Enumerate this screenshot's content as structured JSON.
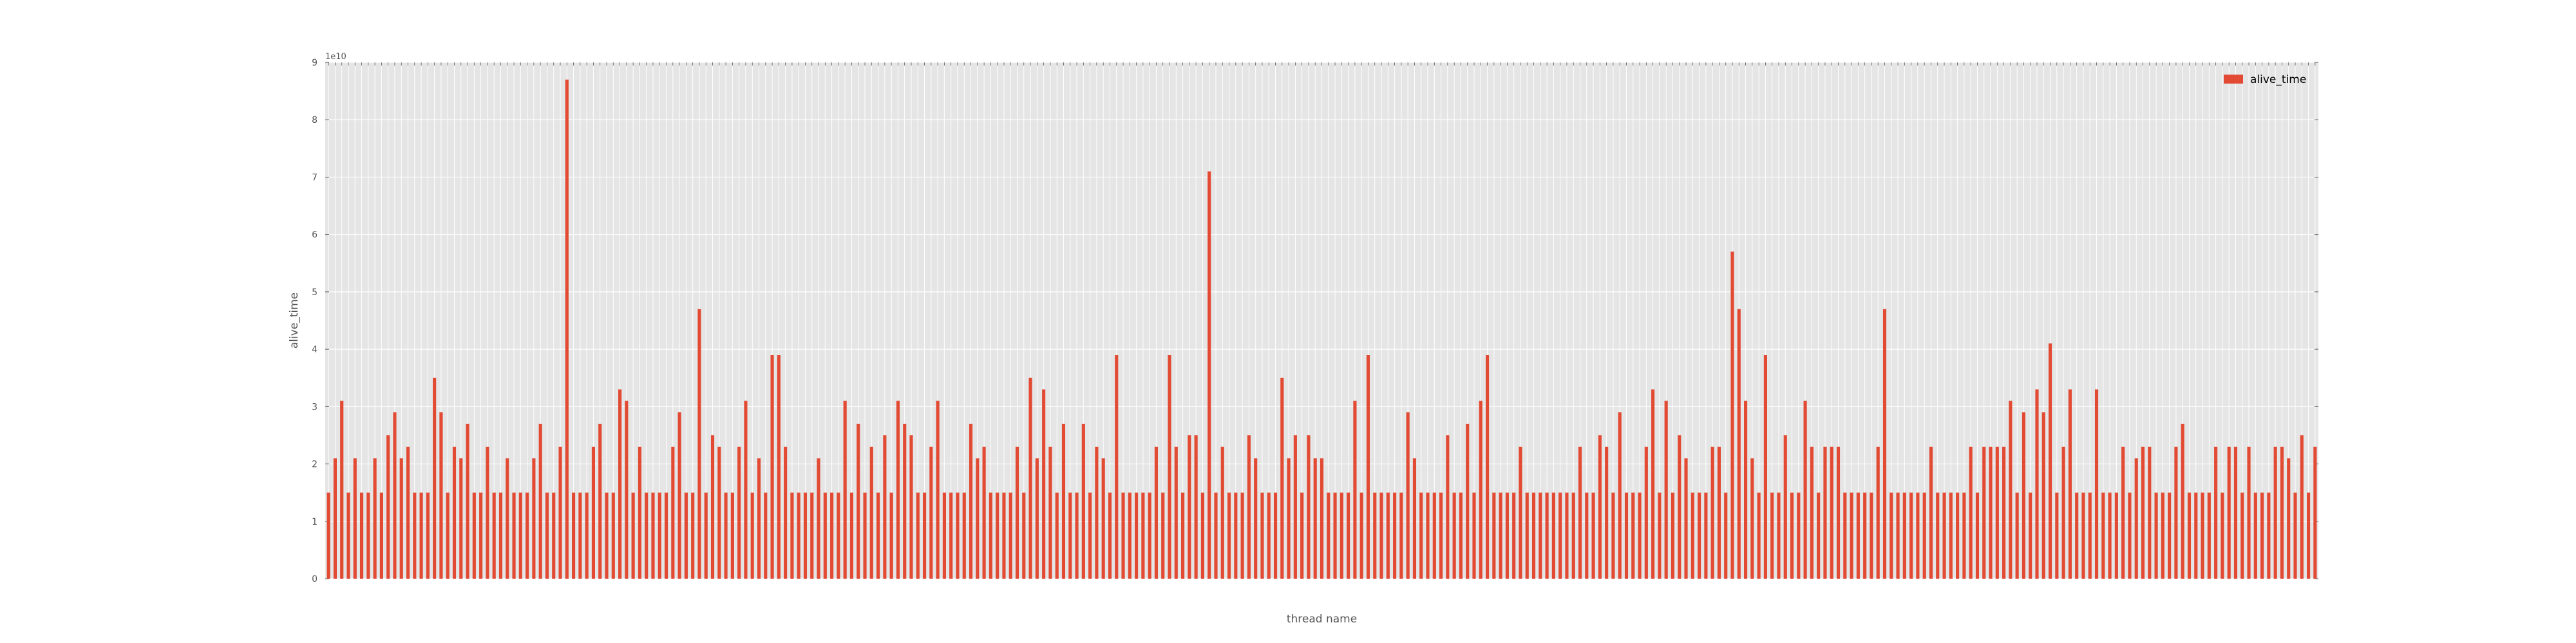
{
  "chart_data": {
    "type": "bar",
    "xlabel": "thread name",
    "ylabel": "alive_time",
    "offset_label": "1e10",
    "ylim": [
      0,
      9
    ],
    "yticks": [
      0,
      1,
      2,
      3,
      4,
      5,
      6,
      7,
      8,
      9
    ],
    "grid": true,
    "legend_position": "top-right",
    "colors": {
      "bar": "#E24A33",
      "background": "#E5E5E5",
      "grid": "#FFFFFF",
      "text": "#555555"
    },
    "series": [
      {
        "name": "alive_time",
        "values": [
          1.5,
          2.1,
          3.1,
          1.5,
          2.1,
          1.5,
          1.5,
          2.1,
          1.5,
          2.5,
          2.9,
          2.1,
          2.3,
          1.5,
          1.5,
          1.5,
          3.5,
          2.9,
          1.5,
          2.3,
          2.1,
          2.7,
          1.5,
          1.5,
          2.3,
          1.5,
          1.5,
          2.1,
          1.5,
          1.5,
          1.5,
          2.1,
          2.7,
          1.5,
          1.5,
          2.3,
          8.7,
          1.5,
          1.5,
          1.5,
          2.3,
          2.7,
          1.5,
          1.5,
          3.3,
          3.1,
          1.5,
          2.3,
          1.5,
          1.5,
          1.5,
          1.5,
          2.3,
          2.9,
          1.5,
          1.5,
          4.7,
          1.5,
          2.5,
          2.3,
          1.5,
          1.5,
          2.3,
          3.1,
          1.5,
          2.1,
          1.5,
          3.9,
          3.9,
          2.3,
          1.5,
          1.5,
          1.5,
          1.5,
          2.1,
          1.5,
          1.5,
          1.5,
          3.1,
          1.5,
          2.7,
          1.5,
          2.3,
          1.5,
          2.5,
          1.5,
          3.1,
          2.7,
          2.5,
          1.5,
          1.5,
          2.3,
          3.1,
          1.5,
          1.5,
          1.5,
          1.5,
          2.7,
          2.1,
          2.3,
          1.5,
          1.5,
          1.5,
          1.5,
          2.3,
          1.5,
          3.5,
          2.1,
          3.3,
          2.3,
          1.5,
          2.7,
          1.5,
          1.5,
          2.7,
          1.5,
          2.3,
          2.1,
          1.5,
          3.9,
          1.5,
          1.5,
          1.5,
          1.5,
          1.5,
          2.3,
          1.5,
          3.9,
          2.3,
          1.5,
          2.5,
          2.5,
          1.5,
          7.1,
          1.5,
          2.3,
          1.5,
          1.5,
          1.5,
          2.5,
          2.1,
          1.5,
          1.5,
          1.5,
          3.5,
          2.1,
          2.5,
          1.5,
          2.5,
          2.1,
          2.1,
          1.5,
          1.5,
          1.5,
          1.5,
          3.1,
          1.5,
          3.9,
          1.5,
          1.5,
          1.5,
          1.5,
          1.5,
          2.9,
          2.1,
          1.5,
          1.5,
          1.5,
          1.5,
          2.5,
          1.5,
          1.5,
          2.7,
          1.5,
          3.1,
          3.9,
          1.5,
          1.5,
          1.5,
          1.5,
          2.3,
          1.5,
          1.5,
          1.5,
          1.5,
          1.5,
          1.5,
          1.5,
          1.5,
          2.3,
          1.5,
          1.5,
          2.5,
          2.3,
          1.5,
          2.9,
          1.5,
          1.5,
          1.5,
          2.3,
          3.3,
          1.5,
          3.1,
          1.5,
          2.5,
          2.1,
          1.5,
          1.5,
          1.5,
          2.3,
          2.3,
          1.5,
          5.7,
          4.7,
          3.1,
          2.1,
          1.5,
          3.9,
          1.5,
          1.5,
          2.5,
          1.5,
          1.5,
          3.1,
          2.3,
          1.5,
          2.3,
          2.3,
          2.3,
          1.5,
          1.5,
          1.5,
          1.5,
          1.5,
          2.3,
          4.7,
          1.5,
          1.5,
          1.5,
          1.5,
          1.5,
          1.5,
          2.3,
          1.5,
          1.5,
          1.5,
          1.5,
          1.5,
          2.3,
          1.5,
          2.3,
          2.3,
          2.3,
          2.3,
          3.1,
          1.5,
          2.9,
          1.5,
          3.3,
          2.9,
          4.1,
          1.5,
          2.3,
          3.3,
          1.5,
          1.5,
          1.5,
          3.3,
          1.5,
          1.5,
          1.5,
          2.3,
          1.5,
          2.1,
          2.3,
          2.3,
          1.5,
          1.5,
          1.5,
          2.3,
          2.7,
          1.5,
          1.5,
          1.5,
          1.5,
          2.3,
          1.5,
          2.3,
          2.3,
          1.5,
          2.3,
          1.5,
          1.5,
          1.5,
          2.3,
          2.3,
          2.1,
          1.5,
          2.5,
          1.5,
          2.3
        ]
      }
    ]
  }
}
